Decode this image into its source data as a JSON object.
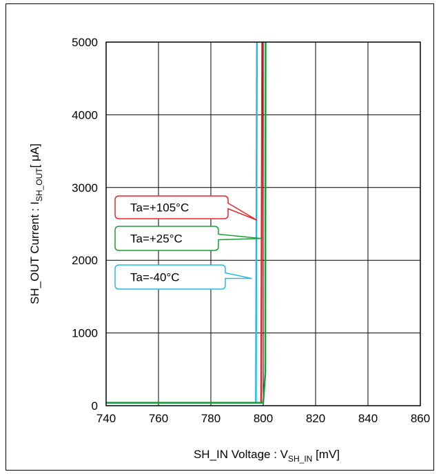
{
  "chart_data": {
    "type": "line",
    "xlabel": {
      "main": "SH_IN Voltage : V",
      "sub": "SH_IN",
      "unit": " [mV]"
    },
    "ylabel": {
      "main": "SH_OUT Current : I",
      "sub": "SH_OUT",
      "unit": "[ μA]"
    },
    "xlim": [
      740,
      860
    ],
    "ylim": [
      0,
      5000
    ],
    "xticks": [
      740,
      760,
      780,
      800,
      820,
      840,
      860
    ],
    "yticks": [
      0,
      1000,
      2000,
      3000,
      4000,
      5000
    ],
    "grid": true,
    "series": [
      {
        "name": "Ta=-40°C",
        "color": "#26b8e8",
        "label_y": 1750,
        "points": [
          [
            740,
            40
          ],
          [
            797.2,
            40
          ],
          [
            797.6,
            5000
          ]
        ]
      },
      {
        "name": "Ta=+105°C",
        "color": "#e8222a",
        "label_y": 2550,
        "points": [
          [
            740,
            40
          ],
          [
            799.2,
            40
          ],
          [
            799.6,
            5000
          ]
        ]
      },
      {
        "name": "Ta=+25°C",
        "color": "#1a9a3a",
        "label_y": 2300,
        "points": [
          [
            740,
            40
          ],
          [
            800.0,
            40
          ],
          [
            800.8,
            450
          ],
          [
            800.9,
            5000
          ]
        ]
      }
    ]
  }
}
